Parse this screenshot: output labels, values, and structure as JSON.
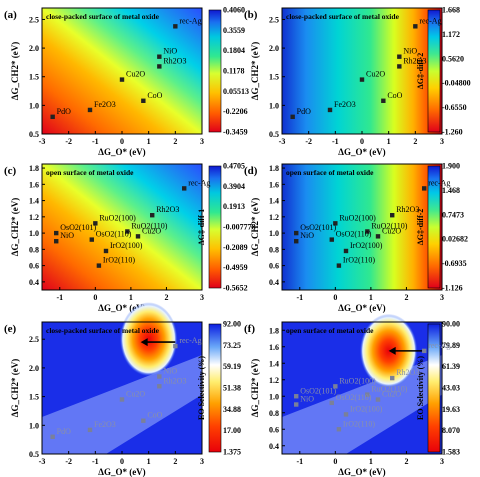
{
  "figure": {
    "title": ""
  },
  "colors": {
    "rainbow": [
      "#e0001a",
      "#ff4a00",
      "#ff9500",
      "#ffd400",
      "#c8ff00",
      "#3fe87a",
      "#00d8d0",
      "#16a8f0",
      "#2a5bff",
      "#0f1ad8"
    ],
    "selectivity": [
      "#0c1ee0",
      "#2a6ef5",
      "#ffffff",
      "#ffe95a",
      "#ff9a00",
      "#ff3400",
      "#e8000a"
    ]
  },
  "chart_data": [
    {
      "panel": "(a)",
      "type": "heatmap",
      "annotation": "close-packed surface of metal oxide",
      "xlabel": "ΔG_O* (eV)",
      "ylabel": "ΔG_CH2* (eV)",
      "xlim": [
        -3,
        3
      ],
      "ylim": [
        0.5,
        2.7
      ],
      "xticks": [
        -3,
        -2,
        -1,
        0,
        1,
        2,
        3
      ],
      "yticks": [
        0.5,
        1.0,
        1.5,
        2.0,
        2.5
      ],
      "colorbar_label": "",
      "colorbar_ticks": [
        "-0.3459",
        "-0.2206",
        "0.05513",
        "0.1178",
        "0.1804",
        "0.3559",
        "0.4060"
      ],
      "points": [
        {
          "label": "rec-Ag",
          "x": 2.0,
          "y": 2.38
        },
        {
          "label": "NiO",
          "x": 1.4,
          "y": 1.85
        },
        {
          "label": "Rh2O3",
          "x": 1.4,
          "y": 1.68
        },
        {
          "label": "Cu2O",
          "x": 0.0,
          "y": 1.45
        },
        {
          "label": "CoO",
          "x": 0.8,
          "y": 1.08
        },
        {
          "label": "PdO",
          "x": -2.6,
          "y": 0.8
        },
        {
          "label": "Fe2O3",
          "x": -1.2,
          "y": 0.92
        }
      ]
    },
    {
      "panel": "(b)",
      "type": "heatmap",
      "annotation": "close-packed surface of metal oxide",
      "xlabel": "ΔG_O* (eV)",
      "ylabel": "ΔG_CH2* (eV)",
      "xlim": [
        -3,
        3
      ],
      "ylim": [
        0.5,
        2.7
      ],
      "xticks": [
        -3,
        -2,
        -1,
        0,
        1,
        2,
        3
      ],
      "yticks": [
        0.5,
        1.0,
        1.5,
        2.0,
        2.5
      ],
      "colorbar_label": "ΔG‡-diff-2",
      "colorbar_ticks": [
        "-1.260",
        "-0.6550",
        "-0.04800",
        "0.5620",
        "1.172",
        "1.668"
      ],
      "points": [
        {
          "label": "rec-Ag",
          "x": 2.0,
          "y": 2.38
        },
        {
          "label": "NiO",
          "x": 1.4,
          "y": 1.85
        },
        {
          "label": "Rh2O3",
          "x": 1.4,
          "y": 1.68
        },
        {
          "label": "Cu2O",
          "x": 0.0,
          "y": 1.45
        },
        {
          "label": "CoO",
          "x": 0.8,
          "y": 1.08
        },
        {
          "label": "PdO",
          "x": -2.6,
          "y": 0.8
        },
        {
          "label": "Fe2O3",
          "x": -1.2,
          "y": 0.92
        }
      ]
    },
    {
      "panel": "(c)",
      "type": "heatmap",
      "annotation": "open surface of metal oxide",
      "xlabel": "ΔG_O* (eV)",
      "ylabel": "ΔG_CH2* (eV)",
      "xlim": [
        -1.5,
        3
      ],
      "ylim": [
        0.3,
        1.85
      ],
      "xticks": [
        -1,
        0,
        1,
        2,
        3
      ],
      "yticks": [
        0.4,
        0.6,
        0.8,
        1.0,
        1.2,
        1.4,
        1.6,
        1.8
      ],
      "colorbar_label": "ΔG‡-diff-1",
      "colorbar_ticks": [
        "-0.5652",
        "-0.4959",
        "-0.2089",
        "-0.007778",
        "0.1913",
        "0.3904",
        "0.4705"
      ],
      "points": [
        {
          "label": "rec-Ag",
          "x": 2.5,
          "y": 1.55
        },
        {
          "label": "Rh2O3",
          "x": 1.6,
          "y": 1.22
        },
        {
          "label": "RuO2(100)",
          "x": 0.0,
          "y": 1.12
        },
        {
          "label": "RuO2(110)",
          "x": 0.9,
          "y": 1.02
        },
        {
          "label": "Cu2O",
          "x": 1.2,
          "y": 0.96
        },
        {
          "label": "OsO2(101)",
          "x": -1.1,
          "y": 1.0
        },
        {
          "label": "OsO2(110)",
          "x": -0.1,
          "y": 0.92
        },
        {
          "label": "NiO",
          "x": -1.1,
          "y": 0.9
        },
        {
          "label": "IrO2(100)",
          "x": 0.3,
          "y": 0.78
        },
        {
          "label": "IrO2(110)",
          "x": 0.1,
          "y": 0.6
        }
      ]
    },
    {
      "panel": "(d)",
      "type": "heatmap",
      "annotation": "open surface of metal oxide",
      "xlabel": "ΔG_O* (eV)",
      "ylabel": "ΔG_CH2* (eV)",
      "xlim": [
        -1.5,
        3
      ],
      "ylim": [
        0.3,
        1.85
      ],
      "xticks": [
        -1,
        0,
        1,
        2,
        3
      ],
      "yticks": [
        0.4,
        0.6,
        0.8,
        1.0,
        1.2,
        1.4,
        1.6,
        1.8
      ],
      "colorbar_label": "ΔG‡-diff-2",
      "colorbar_ticks": [
        "-1.126",
        "-0.6935",
        "0.02682",
        "0.7473",
        "1.468",
        "1.900"
      ],
      "points": [
        {
          "label": "rec-Ag",
          "x": 2.5,
          "y": 1.55
        },
        {
          "label": "Rh2O3",
          "x": 1.6,
          "y": 1.22
        },
        {
          "label": "RuO2(100)",
          "x": 0.0,
          "y": 1.12
        },
        {
          "label": "RuO2(110)",
          "x": 0.9,
          "y": 1.02
        },
        {
          "label": "Cu2O",
          "x": 1.2,
          "y": 0.96
        },
        {
          "label": "OsO2(101)",
          "x": -1.1,
          "y": 1.0
        },
        {
          "label": "OsO2(110)",
          "x": -0.1,
          "y": 0.92
        },
        {
          "label": "NiO",
          "x": -1.1,
          "y": 0.9
        },
        {
          "label": "IrO2(100)",
          "x": 0.3,
          "y": 0.78
        },
        {
          "label": "IrO2(110)",
          "x": 0.1,
          "y": 0.6
        }
      ]
    },
    {
      "panel": "(e)",
      "type": "heatmap",
      "annotation": "close-packed surface of metal oxide",
      "xlabel": "ΔG_O* (eV)",
      "ylabel": "ΔG_CH2* (eV)",
      "xlim": [
        -3,
        3
      ],
      "ylim": [
        0.5,
        2.8
      ],
      "xticks": [
        -3,
        -2,
        -1,
        0,
        1,
        2,
        3
      ],
      "yticks": [
        0.5,
        1.0,
        1.5,
        2.0,
        2.5
      ],
      "colorbar_label": "EO Selectivity (%)",
      "colorbar_ticks": [
        "1.375",
        "17.00",
        "34.88",
        "51.38",
        "59.19",
        "73.25",
        "92.00"
      ],
      "points": [
        {
          "label": "rec-Ag",
          "x": 2.0,
          "y": 2.38
        },
        {
          "label": "NiO",
          "x": 1.4,
          "y": 1.85
        },
        {
          "label": "Rh2O3",
          "x": 1.4,
          "y": 1.68
        },
        {
          "label": "Cu2O",
          "x": 0.0,
          "y": 1.45
        },
        {
          "label": "CoO",
          "x": 0.8,
          "y": 1.08
        },
        {
          "label": "PdO",
          "x": -2.6,
          "y": 0.8
        },
        {
          "label": "Fe2O3",
          "x": -1.2,
          "y": 0.92
        }
      ]
    },
    {
      "panel": "(f)",
      "type": "heatmap",
      "annotation": "open surface of metal oxide",
      "xlabel": "ΔG_O* (eV)",
      "ylabel": "ΔG_CH2* (eV)",
      "xlim": [
        -1.5,
        3
      ],
      "ylim": [
        0.3,
        1.9
      ],
      "xticks": [
        -1,
        0,
        1,
        2,
        3
      ],
      "yticks": [
        0.4,
        0.6,
        0.8,
        1.0,
        1.2,
        1.4,
        1.6,
        1.8
      ],
      "colorbar_label": "EO Selectivity (%)",
      "colorbar_ticks": [
        "1.583",
        "8.070",
        "19.63",
        "43.03",
        "61.39",
        "79.89",
        "90.00"
      ],
      "points": [
        {
          "label": "rec-Ag",
          "x": 2.5,
          "y": 1.55
        },
        {
          "label": "Rh2O3",
          "x": 1.6,
          "y": 1.22
        },
        {
          "label": "RuO2(100)",
          "x": 0.0,
          "y": 1.12
        },
        {
          "label": "RuO2(110)",
          "x": 0.9,
          "y": 1.02
        },
        {
          "label": "Cu2O",
          "x": 1.2,
          "y": 0.96
        },
        {
          "label": "OsO2(101)",
          "x": -1.1,
          "y": 1.0
        },
        {
          "label": "OsO2(110)",
          "x": -0.1,
          "y": 0.92
        },
        {
          "label": "NiO",
          "x": -1.1,
          "y": 0.9
        },
        {
          "label": "IrO2(100)",
          "x": 0.3,
          "y": 0.78
        },
        {
          "label": "IrO2(110)",
          "x": 0.1,
          "y": 0.6
        }
      ]
    }
  ]
}
